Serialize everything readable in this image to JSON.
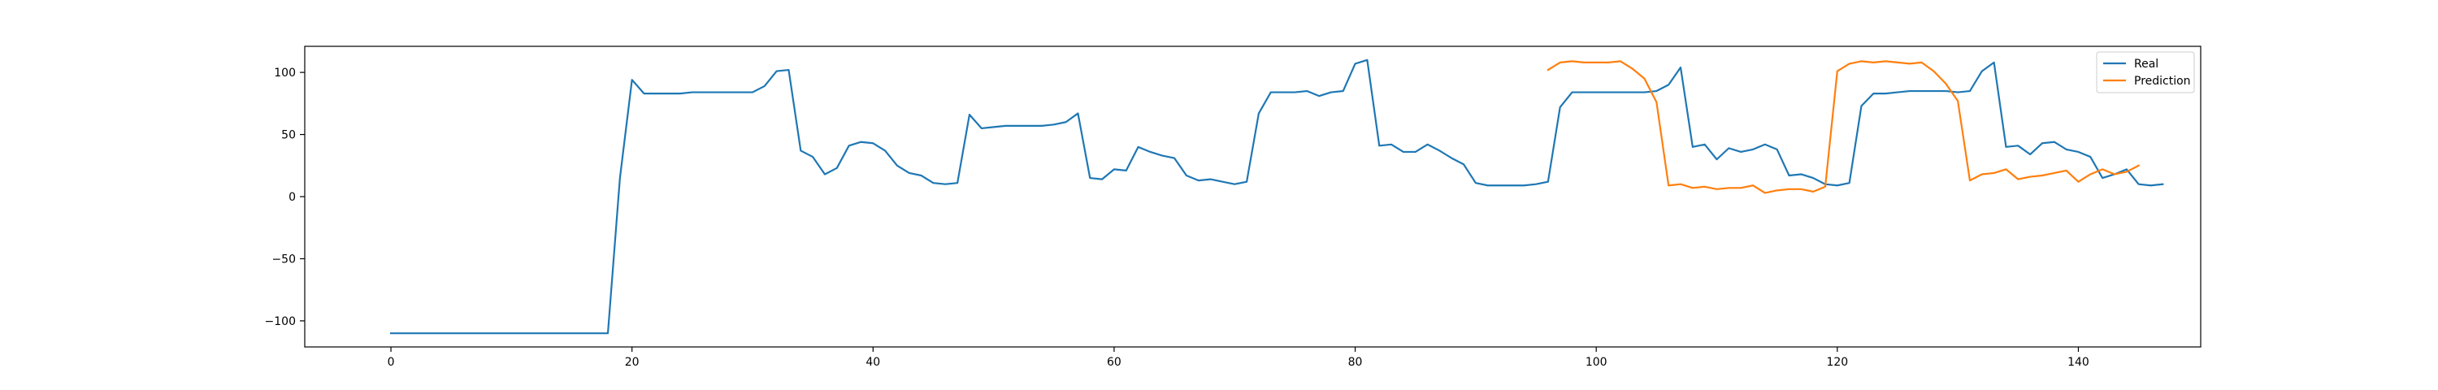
{
  "chart_data": {
    "type": "line",
    "title": "",
    "xlabel": "",
    "ylabel": "",
    "xlim": [
      -7.15,
      150.15
    ],
    "ylim": [
      -121,
      121
    ],
    "xticks": [
      0,
      20,
      40,
      60,
      80,
      100,
      120,
      140
    ],
    "yticks": [
      -100,
      -50,
      0,
      50,
      100
    ],
    "grid": false,
    "legend_position": "top-right",
    "series": [
      {
        "name": "Real",
        "color": "#1f77b4",
        "x_start": 0,
        "values": [
          -110,
          -110,
          -110,
          -110,
          -110,
          -110,
          -110,
          -110,
          -110,
          -110,
          -110,
          -110,
          -110,
          -110,
          -110,
          -110,
          -110,
          -110,
          -110,
          15,
          94,
          83,
          83,
          83,
          83,
          84,
          84,
          84,
          84,
          84,
          84,
          89,
          101,
          102,
          37,
          32,
          18,
          23,
          41,
          44,
          43,
          37,
          25,
          19,
          17,
          11,
          10,
          11,
          66,
          55,
          56,
          57,
          57,
          57,
          57,
          58,
          60,
          67,
          15,
          14,
          22,
          21,
          40,
          36,
          33,
          31,
          17,
          13,
          14,
          12,
          10,
          12,
          67,
          84,
          84,
          84,
          85,
          81,
          84,
          85,
          107,
          110,
          41,
          42,
          36,
          36,
          42,
          37,
          31,
          26,
          11,
          9,
          9,
          9,
          9,
          10,
          12,
          72,
          84,
          84,
          84,
          84,
          84,
          84,
          84,
          85,
          90,
          104,
          40,
          42,
          30,
          39,
          36,
          38,
          42,
          38,
          17,
          18,
          15,
          10,
          9,
          11,
          73,
          83,
          83,
          84,
          85,
          85,
          85,
          85,
          84,
          85,
          101,
          108,
          40,
          41,
          34,
          43,
          44,
          38,
          36,
          32,
          15,
          18,
          22,
          10,
          9,
          10
        ]
      },
      {
        "name": "Prediction",
        "color": "#ff7f0e",
        "x_start": 96,
        "values": [
          102,
          108,
          109,
          108,
          108,
          108,
          109,
          103,
          95,
          76,
          9,
          10,
          7,
          8,
          6,
          7,
          7,
          9,
          3,
          5,
          6,
          6,
          4,
          8,
          101,
          107,
          109,
          108,
          109,
          108,
          107,
          108,
          101,
          91,
          77,
          13,
          18,
          19,
          22,
          14,
          16,
          17,
          19,
          21,
          12,
          18,
          22,
          18,
          20,
          25
        ]
      }
    ]
  }
}
